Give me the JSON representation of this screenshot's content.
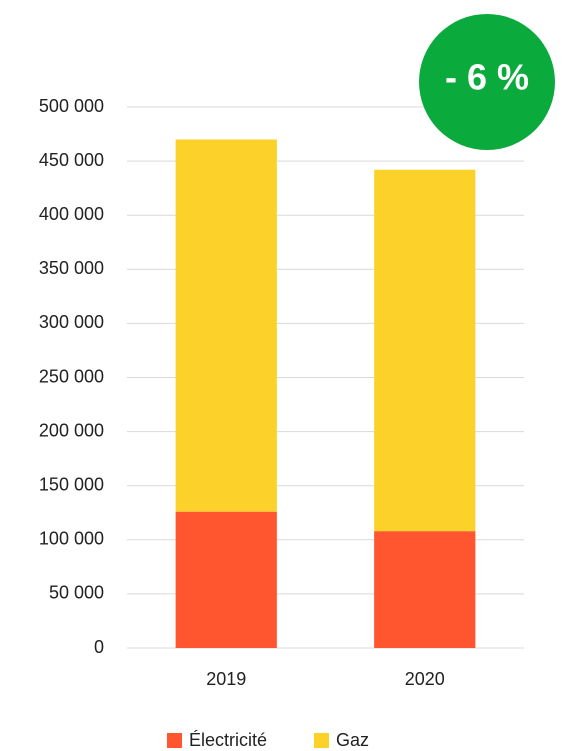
{
  "chart_data": {
    "type": "stacked_bar",
    "categories": [
      "2019",
      "2020"
    ],
    "series": [
      {
        "name": "Électricité",
        "color": "#ff5630",
        "values": [
          126000,
          108000
        ]
      },
      {
        "name": "Gaz",
        "color": "#fcd22a",
        "values": [
          344000,
          334000
        ]
      }
    ],
    "ylim": [
      0,
      500000
    ],
    "yticks": [
      0,
      {
        "value": 50000,
        "label": "50 000"
      },
      {
        "value": 100000,
        "label": "100 000"
      },
      {
        "value": 150000,
        "label": "150 000"
      },
      {
        "value": 200000,
        "label": "200 000"
      },
      {
        "value": 250000,
        "label": "250 000"
      },
      {
        "value": 300000,
        "label": "300 000"
      },
      {
        "value": 350000,
        "label": "350 000"
      },
      {
        "value": 400000,
        "label": "400 000"
      },
      {
        "value": 450000,
        "label": "450 000"
      },
      {
        "value": 500000,
        "label": "500 000"
      }
    ],
    "grid": true,
    "legend": "bottom",
    "annotation": "- 6 %",
    "annotation_color": "#0aaa3c"
  }
}
